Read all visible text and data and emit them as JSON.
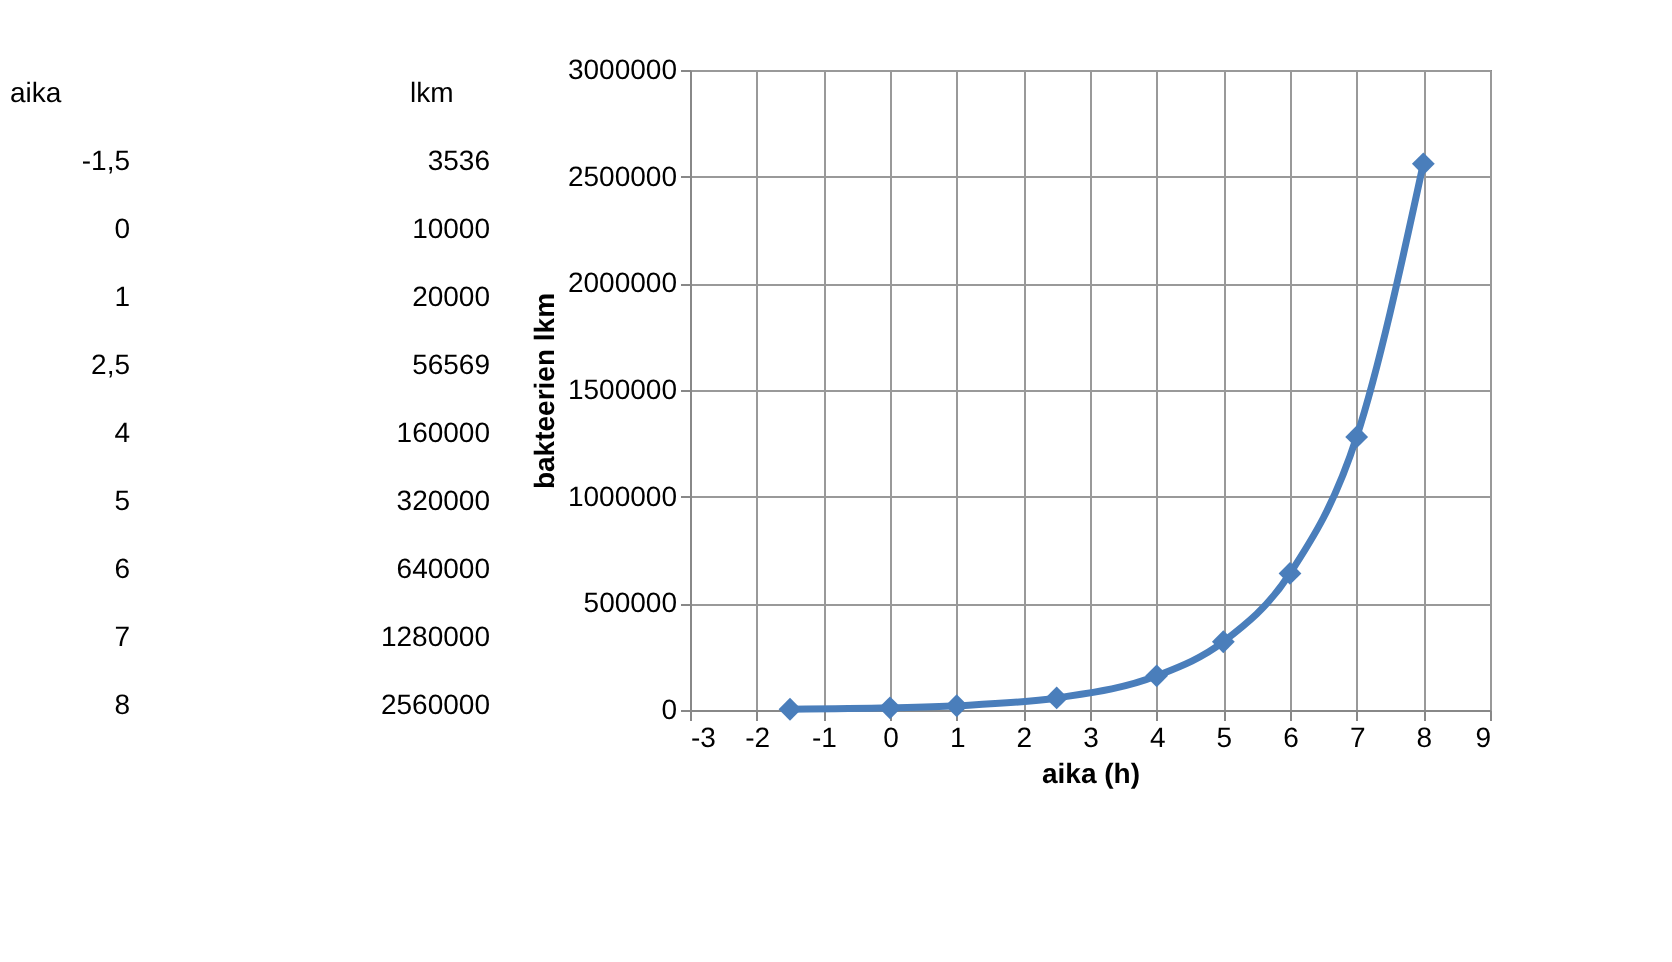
{
  "chart_data": [
    {
      "type": "other",
      "xlabel": "aika",
      "ylabel": "lkm",
      "categories": [
        "-1,5",
        "0",
        "1",
        "2,5",
        "4",
        "5",
        "6",
        "7",
        "8"
      ],
      "values": [
        3536,
        10000,
        20000,
        56569,
        160000,
        320000,
        640000,
        1280000,
        2560000
      ],
      "data_labels": true
    },
    {
      "type": "line",
      "xlabel": "aika (h)",
      "ylabel": "bakteerien lkm",
      "x": [
        -1.5,
        0,
        1,
        2.5,
        4,
        5,
        6,
        7,
        8
      ],
      "series": [
        {
          "color": "#4a7ebb",
          "values": [
            3536,
            10000,
            20000,
            56569,
            160000,
            320000,
            640000,
            1280000,
            2560000
          ]
        }
      ],
      "xlim": [
        -3,
        9
      ],
      "xticks": [
        -3,
        -2,
        -1,
        0,
        1,
        2,
        3,
        4,
        5,
        6,
        7,
        8,
        9
      ],
      "ylim": [
        0,
        3000000
      ],
      "yticks": [
        0,
        500000,
        1000000,
        1500000,
        2000000,
        2500000,
        3000000
      ],
      "grid": true,
      "marker": "diamond",
      "line_style": "solid"
    }
  ]
}
